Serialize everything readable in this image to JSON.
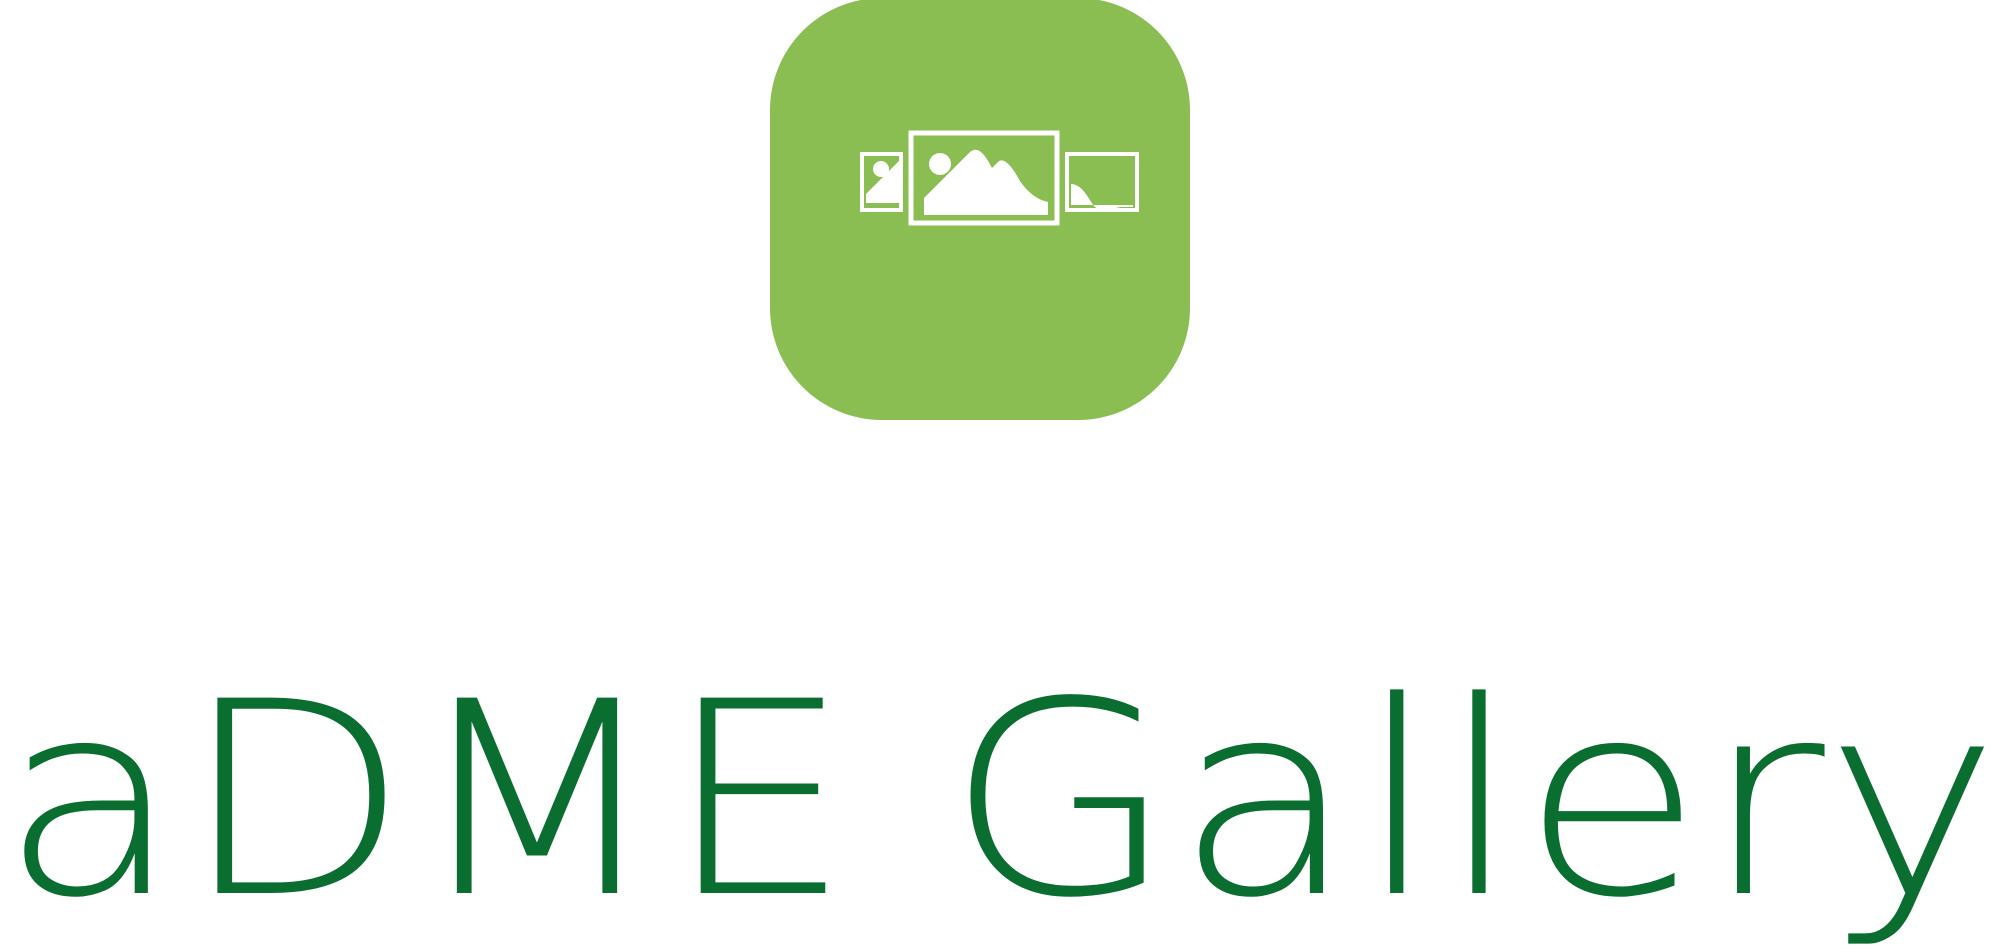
{
  "brand": {
    "name": "aDME Gallery",
    "colors": {
      "badge": "#8bbe52",
      "text": "#0b6e31",
      "icon": "#ffffff"
    },
    "icon": "photo-gallery-icon"
  }
}
